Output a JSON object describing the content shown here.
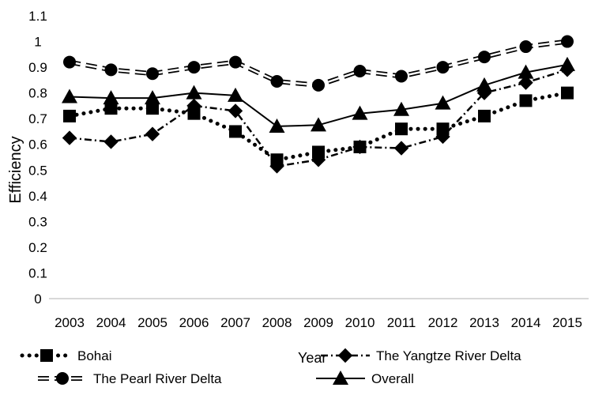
{
  "chart_data": {
    "type": "line",
    "title": "",
    "xlabel": "Year",
    "ylabel": "Efficiency",
    "categories": [
      "2003",
      "2004",
      "2005",
      "2006",
      "2007",
      "2008",
      "2009",
      "2010",
      "2011",
      "2012",
      "2013",
      "2014",
      "2015"
    ],
    "ylim": [
      0,
      1.1
    ],
    "yticks": [
      "0",
      "0.1",
      "0.2",
      "0.3",
      "0.4",
      "0.5",
      "0.6",
      "0.7",
      "0.8",
      "0.9",
      "1",
      "1.1"
    ],
    "grid": false,
    "legend_position": "bottom",
    "series": [
      {
        "name": "Bohai",
        "marker": "square",
        "line_style": "dotted",
        "color": "#000000",
        "values": [
          0.71,
          0.74,
          0.74,
          0.72,
          0.65,
          0.54,
          0.57,
          0.59,
          0.66,
          0.66,
          0.71,
          0.77,
          0.8
        ]
      },
      {
        "name": "The Yangtze River Delta",
        "marker": "diamond",
        "line_style": "dash-dot",
        "color": "#000000",
        "values": [
          0.625,
          0.61,
          0.64,
          0.75,
          0.73,
          0.515,
          0.54,
          0.59,
          0.585,
          0.63,
          0.8,
          0.84,
          0.89
        ]
      },
      {
        "name": "The Pearl River Delta",
        "marker": "circle",
        "line_style": "double-dashed",
        "color": "#000000",
        "values": [
          0.92,
          0.89,
          0.875,
          0.9,
          0.92,
          0.845,
          0.83,
          0.885,
          0.865,
          0.9,
          0.94,
          0.98,
          1.0
        ]
      },
      {
        "name": "Overall",
        "marker": "triangle",
        "line_style": "solid",
        "color": "#000000",
        "values": [
          0.785,
          0.78,
          0.78,
          0.8,
          0.79,
          0.67,
          0.675,
          0.72,
          0.735,
          0.76,
          0.83,
          0.88,
          0.91
        ]
      }
    ]
  }
}
